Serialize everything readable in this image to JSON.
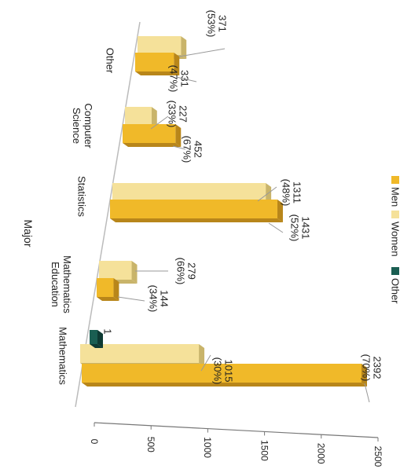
{
  "chart_data": {
    "type": "bar",
    "orientation": "horizontal",
    "stacked": false,
    "three_d": true,
    "rotated_view": "rotated 90 degrees clockwise",
    "xlabel": "Major",
    "ylabel": "",
    "ylim": [
      0,
      2500
    ],
    "ticks": [
      0,
      500,
      1000,
      1500,
      2000,
      2500
    ],
    "grid": false,
    "legend_position": "top-right",
    "categories": [
      "Mathematics",
      "Mathematics Education",
      "Statistics",
      "Computer Science",
      "Other"
    ],
    "category_lines": [
      [
        "Mathematics"
      ],
      [
        "Mathematics",
        "Education"
      ],
      [
        "Statistics"
      ],
      [
        "Computer",
        "Science"
      ],
      [
        "Other"
      ]
    ],
    "series": [
      {
        "name": "Men",
        "color": "#f0b929",
        "side": "#b8861a",
        "values": [
          2392,
          144,
          1431,
          452,
          331
        ],
        "labels": [
          [
            "2392",
            "(70%)"
          ],
          [
            "144",
            "(34%)"
          ],
          [
            "1431",
            "(52%)"
          ],
          [
            "452",
            "(67%)"
          ],
          [
            "331",
            "(47%)"
          ]
        ]
      },
      {
        "name": "Women",
        "color": "#f5e19a",
        "side": "#c9b46a",
        "values": [
          1015,
          279,
          1311,
          227,
          371
        ],
        "labels": [
          [
            "1015",
            "(30%)"
          ],
          [
            "279",
            "(66%)"
          ],
          [
            "1311",
            "(48%)"
          ],
          [
            "227",
            "(33%)"
          ],
          [
            "371",
            "(53%)"
          ]
        ]
      },
      {
        "name": "Other",
        "color": "#1a5e52",
        "side": "#0e3a33",
        "values": [
          1,
          null,
          null,
          null,
          null
        ],
        "labels": [
          [
            "1"
          ],
          null,
          null,
          null,
          null
        ]
      }
    ]
  }
}
